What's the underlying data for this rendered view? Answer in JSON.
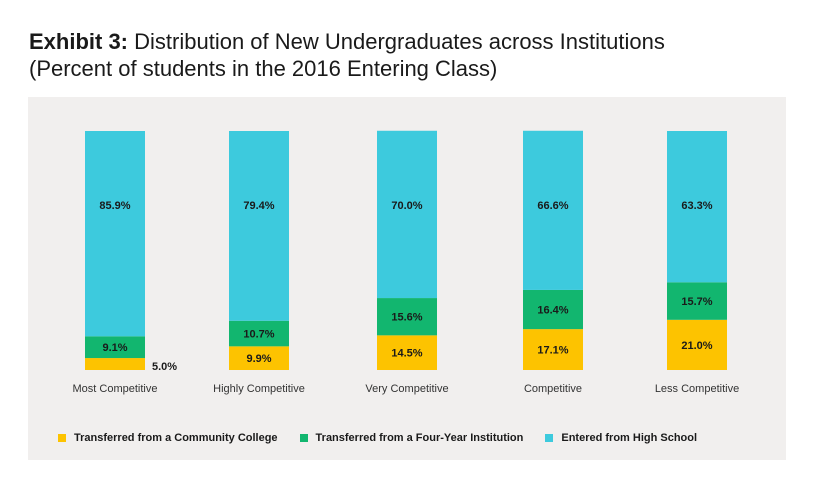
{
  "title": {
    "bold": "Exhibit 3:",
    "rest": "Distribution of New Undergraduates across Institutions",
    "line2": "(Percent of students in the 2016 Entering Class)"
  },
  "colors": {
    "community": "#fdc300",
    "fouryear": "#12b66f",
    "highschool": "#3dcadd",
    "panel": "#f1efee"
  },
  "legend": [
    {
      "label": "Transferred from a Community College",
      "color": "#fdc300"
    },
    {
      "label": "Transferred from a Four-Year Institution",
      "color": "#12b66f"
    },
    {
      "label": "Entered from High School",
      "color": "#3dcadd"
    }
  ],
  "chart_data": {
    "type": "bar",
    "stacked": true,
    "title": "Distribution of New Undergraduates across Institutions",
    "subtitle": "(Percent of students in the 2016 Entering Class)",
    "categories": [
      "Most Competitive",
      "Highly Competitive",
      "Very Competitive",
      "Competitive",
      "Less Competitive"
    ],
    "series": [
      {
        "name": "Transferred from a Community College",
        "values": [
          5.0,
          9.9,
          14.5,
          17.1,
          21.0
        ],
        "labels": [
          "5.0%",
          "9.9%",
          "14.5%",
          "17.1%",
          "21.0%"
        ]
      },
      {
        "name": "Transferred from a Four-Year Institution",
        "values": [
          9.1,
          10.7,
          15.6,
          16.4,
          15.7
        ],
        "labels": [
          "9.1%",
          "10.7%",
          "15.6%",
          "16.4%",
          "15.7%"
        ]
      },
      {
        "name": "Entered from High School",
        "values": [
          85.9,
          79.4,
          70.0,
          66.6,
          63.3
        ],
        "labels": [
          "85.9%",
          "79.4%",
          "70.0%",
          "66.6%",
          "63.3%"
        ]
      }
    ],
    "ylim": [
      0,
      100
    ],
    "legend_position": "bottom"
  }
}
